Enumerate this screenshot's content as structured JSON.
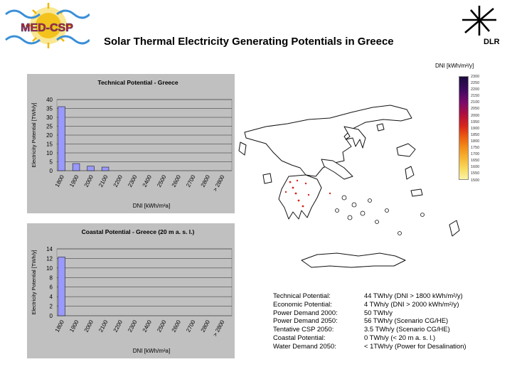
{
  "title": "Solar Thermal Electricity Generating Potentials in Greece",
  "logos": {
    "left": "MED-CSP",
    "right": "DLR"
  },
  "map": {
    "legend_title": "DNI [kWh/m²/y]",
    "legend_ticks": [
      "2300",
      "2250",
      "2200",
      "2150",
      "2100",
      "2050",
      "2000",
      "1950",
      "1900",
      "1850",
      "1800",
      "1750",
      "1700",
      "1650",
      "1600",
      "1550",
      "1500"
    ]
  },
  "stats": {
    "labels": [
      "Technical Potential:",
      "Economic Potential:",
      "Power Demand 2000:",
      "Power Demand 2050:",
      "Tentative CSP 2050:",
      "Coastal Potential:",
      "Water Demand 2050:"
    ],
    "values": [
      "44 TWh/y (DNI > 1800 kWh/m²/y)",
      "4 TWh/y (DNI > 2000 kWh/m²/y)",
      "50 TWh/y",
      "56 TWh/y (Scenario CG/HE)",
      "3.5 TWh/y (Scenario CG/HE)",
      "0 TWh/y (< 20 m a. s. l.)",
      "< 1TWh/y (Power for Desalination)"
    ]
  },
  "chart_data": [
    {
      "type": "bar",
      "title": "Technical Potential - Greece",
      "xlabel": "DNI [kWh/m²a]",
      "ylabel": "Electricity Potential [TWh/y]",
      "categories": [
        "1800",
        "1900",
        "2000",
        "2100",
        "2200",
        "2300",
        "2400",
        "2500",
        "2600",
        "2700",
        "2800",
        "> 2800"
      ],
      "values": [
        36,
        4,
        2.5,
        2,
        0,
        0,
        0,
        0,
        0,
        0,
        0,
        0
      ],
      "ylim": [
        0,
        40
      ],
      "yticks": [
        0,
        5,
        10,
        15,
        20,
        25,
        30,
        35,
        40
      ]
    },
    {
      "type": "bar",
      "title": "Coastal Potential - Greece (20 m a. s. l.)",
      "xlabel": "DNI [kWh/m²a]",
      "ylabel": "Electricity Potential [TWh/y]",
      "categories": [
        "1800",
        "1900",
        "2000",
        "2100",
        "2200",
        "2300",
        "2400",
        "2500",
        "2600",
        "2700",
        "2800",
        "> 2800"
      ],
      "values": [
        12.3,
        0,
        0,
        0,
        0,
        0,
        0,
        0,
        0,
        0,
        0,
        0
      ],
      "ylim": [
        0,
        14
      ],
      "yticks": [
        0,
        2,
        4,
        6,
        8,
        10,
        12,
        14
      ]
    }
  ]
}
